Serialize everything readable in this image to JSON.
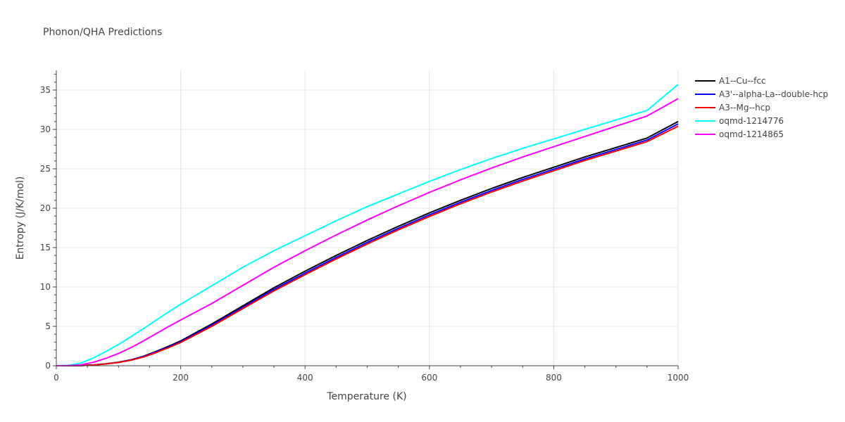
{
  "chart_data": {
    "type": "line",
    "title": "Phonon/QHA Predictions",
    "xlabel": "Temperature (K)",
    "ylabel": "Entropy (J/K/mol)",
    "xlim": [
      0,
      1000
    ],
    "ylim": [
      0,
      37.5
    ],
    "xticks": [
      0,
      200,
      400,
      600,
      800,
      1000
    ],
    "yticks": [
      0,
      5,
      10,
      15,
      20,
      25,
      30,
      35
    ],
    "grid": true,
    "legend_position": "top-right",
    "x": [
      0,
      20,
      40,
      60,
      80,
      100,
      120,
      140,
      160,
      180,
      200,
      250,
      300,
      350,
      400,
      450,
      500,
      550,
      600,
      650,
      700,
      750,
      800,
      850,
      900,
      950,
      1000
    ],
    "series": [
      {
        "name": "A1--Cu--fcc",
        "color": "#000000",
        "values": [
          0,
          0.0,
          0.03,
          0.1,
          0.25,
          0.45,
          0.75,
          1.2,
          1.8,
          2.45,
          3.15,
          5.3,
          7.6,
          9.9,
          12.0,
          14.0,
          15.9,
          17.7,
          19.4,
          21.0,
          22.5,
          23.9,
          25.2,
          26.5,
          27.7,
          28.9,
          31.0
        ]
      },
      {
        "name": "A3'--alpha-La--double-hcp",
        "color": "#0000ff",
        "values": [
          0,
          0.0,
          0.03,
          0.1,
          0.24,
          0.43,
          0.72,
          1.15,
          1.73,
          2.36,
          3.05,
          5.15,
          7.4,
          9.68,
          11.75,
          13.75,
          15.65,
          17.45,
          19.15,
          20.75,
          22.25,
          23.65,
          24.95,
          26.25,
          27.45,
          28.65,
          30.7
        ]
      },
      {
        "name": "A3--Mg--hcp",
        "color": "#ff0000",
        "values": [
          0,
          0.0,
          0.03,
          0.09,
          0.23,
          0.41,
          0.7,
          1.1,
          1.65,
          2.28,
          2.95,
          5.0,
          7.25,
          9.5,
          11.55,
          13.55,
          15.45,
          17.25,
          18.95,
          20.55,
          22.05,
          23.45,
          24.75,
          26.05,
          27.25,
          28.45,
          30.4
        ]
      },
      {
        "name": "oqmd-1214776",
        "color": "#00ffff",
        "values": [
          0,
          0.05,
          0.35,
          1.0,
          1.8,
          2.7,
          3.7,
          4.7,
          5.75,
          6.8,
          7.8,
          10.15,
          12.5,
          14.6,
          16.5,
          18.4,
          20.2,
          21.8,
          23.4,
          24.9,
          26.3,
          27.6,
          28.8,
          30.0,
          31.2,
          32.4,
          35.7
        ]
      },
      {
        "name": "oqmd-1214865",
        "color": "#ff00ff",
        "values": [
          0,
          0.02,
          0.12,
          0.45,
          0.95,
          1.55,
          2.3,
          3.15,
          4.05,
          4.95,
          5.8,
          7.9,
          10.2,
          12.5,
          14.6,
          16.6,
          18.5,
          20.3,
          22.0,
          23.6,
          25.1,
          26.5,
          27.8,
          29.1,
          30.4,
          31.7,
          33.9
        ]
      }
    ]
  }
}
